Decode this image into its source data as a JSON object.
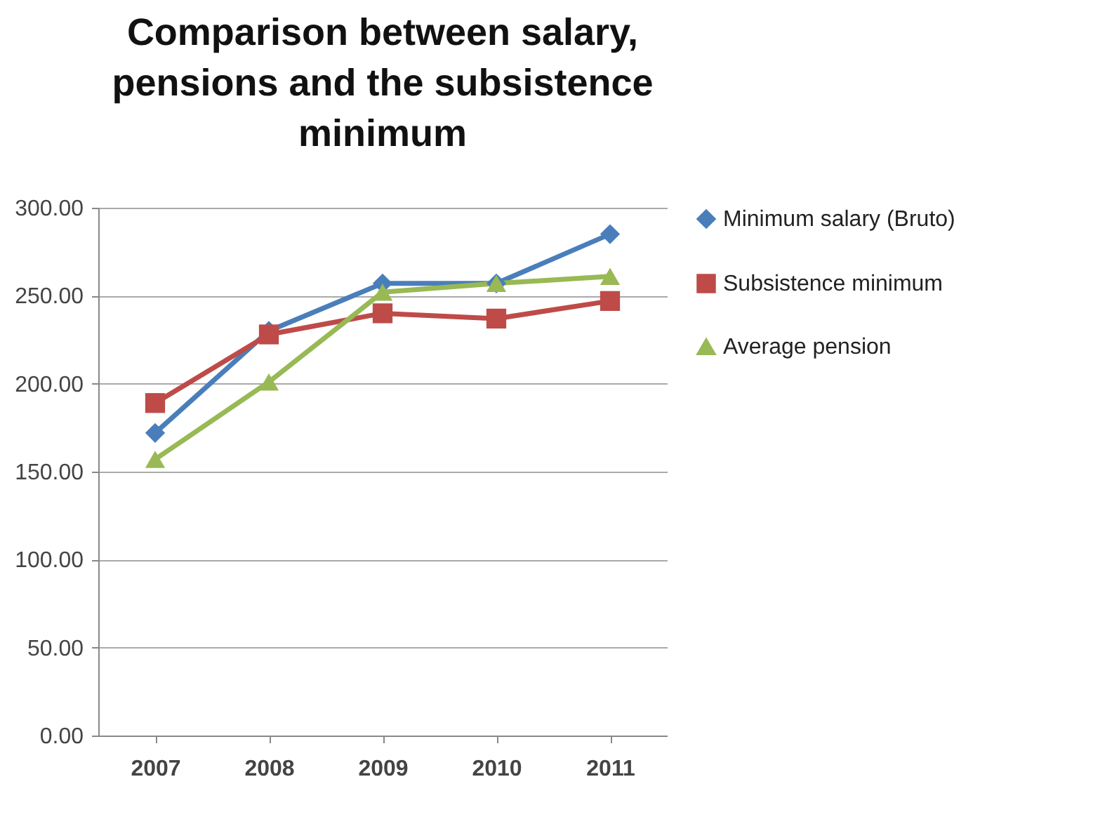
{
  "chart_data": {
    "type": "line",
    "title": "Comparison between salary, pensions and the subsistence minimum",
    "categories": [
      "2007",
      "2008",
      "2009",
      "2010",
      "2011"
    ],
    "series": [
      {
        "name": "Minimum salary (Bruto)",
        "color": "#4a7ebb",
        "marker": "diamond",
        "values": [
          172,
          230,
          257,
          257,
          285
        ]
      },
      {
        "name": "Subsistence minimum",
        "color": "#be4b48",
        "marker": "square",
        "values": [
          189,
          228,
          240,
          237,
          247
        ]
      },
      {
        "name": "Average pension",
        "color": "#98b954",
        "marker": "triangle",
        "values": [
          157,
          201,
          252,
          257,
          261
        ]
      }
    ],
    "ylim": [
      0,
      300
    ],
    "yticks": [
      {
        "value": 0,
        "label": "0.00"
      },
      {
        "value": 50,
        "label": "50.00"
      },
      {
        "value": 100,
        "label": "100.00"
      },
      {
        "value": 150,
        "label": "150.00"
      },
      {
        "value": 200,
        "label": "200.00"
      },
      {
        "value": 250,
        "label": "250.00"
      },
      {
        "value": 300,
        "label": "300.00"
      }
    ],
    "grid": "y",
    "legend": "right",
    "line_style": "solid"
  }
}
